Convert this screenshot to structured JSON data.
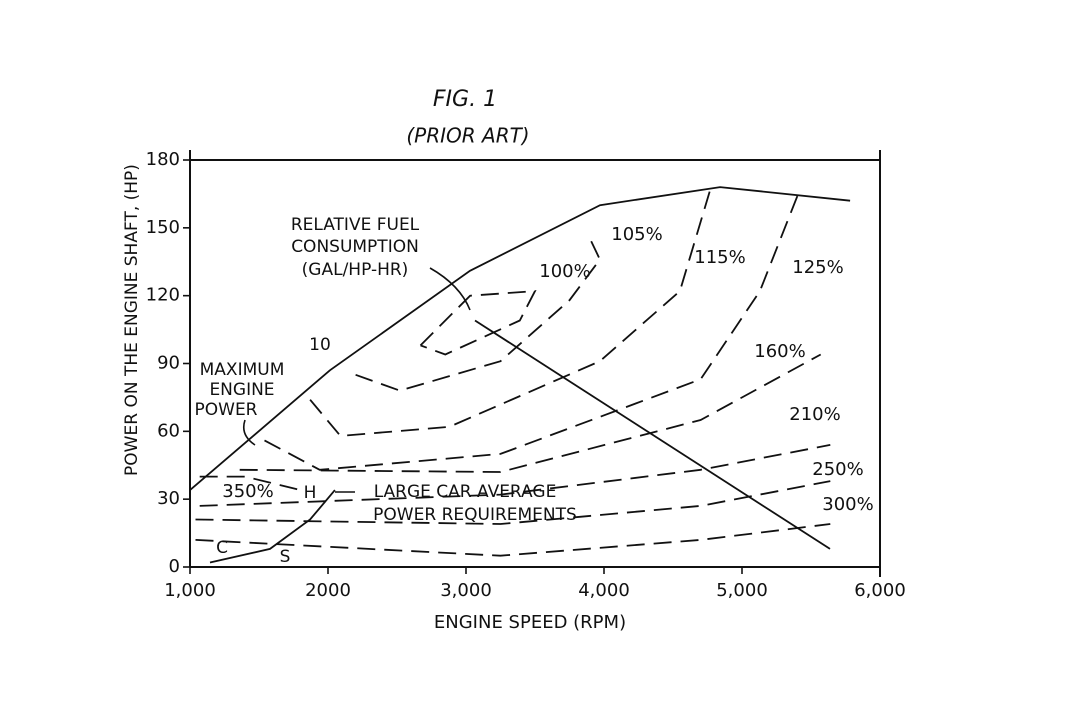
{
  "chart_data": {
    "type": "line",
    "title": "FIG. 1",
    "subtitle": "(PRIOR ART)",
    "x_label": "ENGINE SPEED (RPM)",
    "y_label": "POWER ON THE ENGINE SHAFT, (HP)",
    "xlim": [
      1000,
      6000
    ],
    "ylim": [
      0,
      180
    ],
    "xticks": [
      {
        "value": 1000,
        "label": "1,000"
      },
      2000,
      {
        "value": 3000,
        "label": "3,000"
      },
      {
        "value": 4000,
        "label": "4,000"
      },
      {
        "value": 5000,
        "label": "5,000"
      },
      {
        "value": 6000,
        "label": "6,000"
      }
    ],
    "yticks": [
      0,
      30,
      60,
      90,
      120,
      150,
      180
    ],
    "grid": false,
    "color": "#111111",
    "series": [
      {
        "dashed": false,
        "x": [
          1000,
          2014,
          3029,
          3971,
          4841,
          5783
        ],
        "y": [
          34,
          87,
          131,
          160,
          168,
          162
        ]
      },
      {
        "dashed": false,
        "x": [
          3065,
          5638
        ],
        "y": [
          109,
          8
        ]
      },
      {
        "dashed": false,
        "x": [
          1145,
          1580,
          1870,
          2050
        ],
        "y": [
          2,
          8,
          21,
          34
        ]
      },
      {
        "name": "100%",
        "dashed": true,
        "x": [
          2670,
          3030,
          3500,
          3390,
          2850,
          2670
        ],
        "y": [
          98,
          120,
          122,
          109,
          94,
          98
        ]
      },
      {
        "name": "105%",
        "dashed": true,
        "x": [
          2200,
          2520,
          3250,
          3750,
          3970,
          3900
        ],
        "y": [
          85,
          78,
          91,
          118,
          136,
          145
        ]
      },
      {
        "name": "115%",
        "dashed": true,
        "x": [
          1870,
          2090,
          2880,
          3970,
          4550,
          4770
        ],
        "y": [
          74,
          58,
          62,
          91,
          122,
          167
        ]
      },
      {
        "name": "125%",
        "dashed": true,
        "x": [
          1540,
          1940,
          3250,
          4700,
          5130,
          5420
        ],
        "y": [
          56,
          43,
          50,
          83,
          122,
          167
        ]
      },
      {
        "name": "160%",
        "dashed": true,
        "x": [
          1360,
          3250,
          4700,
          5570
        ],
        "y": [
          43,
          42,
          65,
          94
        ]
      },
      {
        "name": "210%",
        "dashed": true,
        "x": [
          1070,
          3250,
          4700,
          5640
        ],
        "y": [
          27,
          32,
          43,
          54
        ]
      },
      {
        "name": "250%",
        "dashed": true,
        "x": [
          1040,
          3250,
          4700,
          5640
        ],
        "y": [
          21,
          19,
          27,
          38
        ]
      },
      {
        "name": "300%",
        "dashed": true,
        "x": [
          1040,
          3250,
          4700,
          5640
        ],
        "y": [
          12,
          5,
          12,
          19
        ]
      },
      {
        "name": "350%",
        "dashed": true,
        "x": [
          1070,
          1400,
          1800
        ],
        "y": [
          40,
          40,
          34
        ]
      }
    ],
    "annotations": {
      "fuel": [
        "RELATIVE FUEL",
        "CONSUMPTION",
        "(GAL/HP-HR)"
      ],
      "max_power": [
        "MAXIMUM",
        "ENGINE",
        "POWER"
      ],
      "ten": "10",
      "demand": [
        "LARGE CAR AVERAGE",
        "POWER REQUIREMENTS"
      ],
      "points": [
        "C",
        "S",
        "H"
      ]
    }
  }
}
